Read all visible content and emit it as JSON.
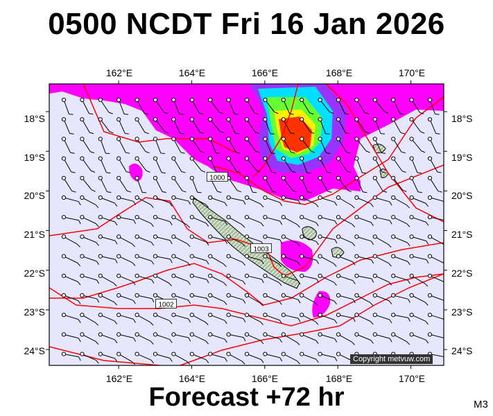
{
  "title": "0500 NCDT Fri 16 Jan 2026",
  "footer": "Forecast +72 hr",
  "model_code": "M3",
  "copyright": "Copyright metvuw.com",
  "map": {
    "lon_range": [
      160.1,
      170.9
    ],
    "lat_range": [
      -17.3,
      -24.4
    ],
    "x_ticks": [
      "162°E",
      "164°E",
      "166°E",
      "168°E",
      "170°E"
    ],
    "x_tick_values": [
      162,
      164,
      166,
      168,
      170
    ],
    "y_ticks": [
      "18°S",
      "19°S",
      "20°S",
      "21°S",
      "22°S",
      "23°S",
      "24°S"
    ],
    "y_tick_values": [
      -18,
      -19,
      -20,
      -21,
      -22,
      -23,
      -24
    ],
    "isobar_labels": [
      {
        "text": "1000",
        "lon": 164.7,
        "lat": -19.65
      },
      {
        "text": "1002",
        "lon": 163.3,
        "lat": -22.85
      },
      {
        "text": "1003",
        "lon": 165.9,
        "lat": -21.45
      }
    ],
    "colors": {
      "background": "#e6e6ff",
      "isobar": "#ff0000",
      "land": "#b7c7a8",
      "rain_light": "#ff00ff",
      "rain_mid": "#00dfff",
      "rain_heavy": "#ff3300"
    }
  }
}
